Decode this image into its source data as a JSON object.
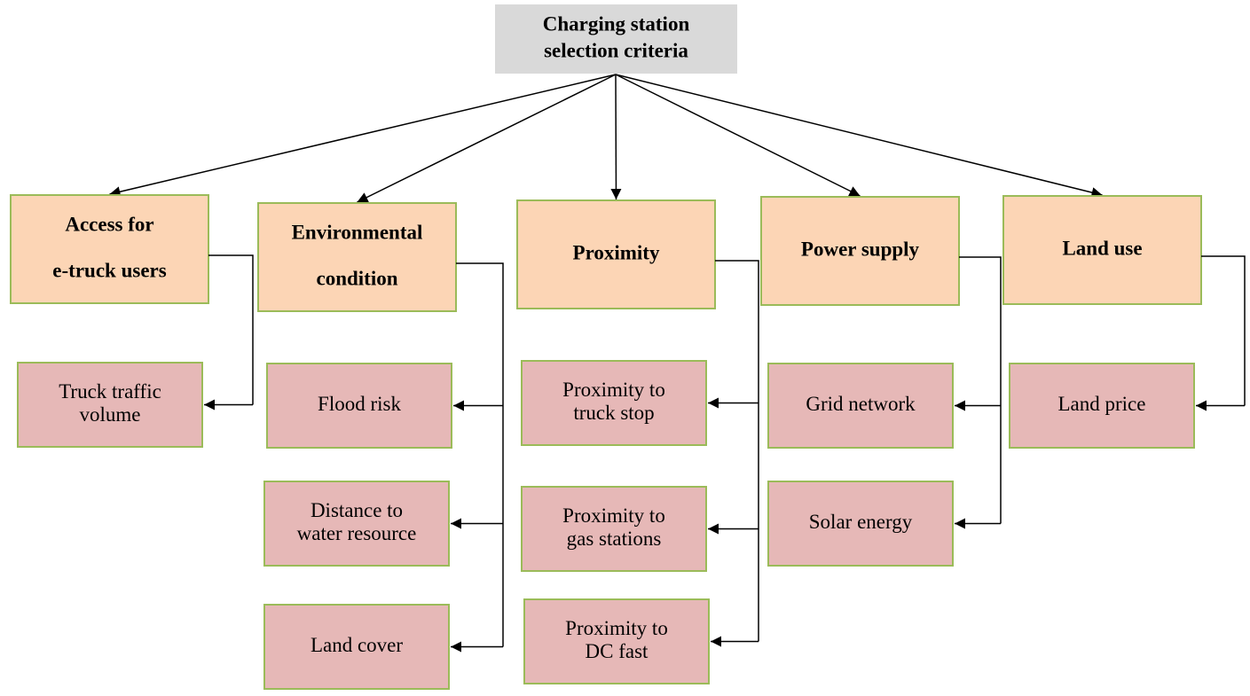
{
  "root": {
    "lines": [
      "Charging station",
      "selection criteria"
    ]
  },
  "criteria": [
    {
      "lines": [
        "Access for",
        "e-truck users"
      ],
      "children": [
        {
          "lines": [
            "Truck traffic",
            "volume"
          ]
        }
      ]
    },
    {
      "lines": [
        "Environmental",
        "condition"
      ],
      "children": [
        {
          "lines": [
            "Flood risk"
          ]
        },
        {
          "lines": [
            "Distance to",
            "water resource"
          ]
        },
        {
          "lines": [
            "Land cover"
          ]
        }
      ]
    },
    {
      "lines": [
        "Proximity"
      ],
      "children": [
        {
          "lines": [
            "Proximity to",
            "truck stop"
          ]
        },
        {
          "lines": [
            "Proximity to",
            "gas stations"
          ]
        },
        {
          "lines": [
            "Proximity to",
            "DC fast"
          ]
        }
      ]
    },
    {
      "lines": [
        "Power supply"
      ],
      "children": [
        {
          "lines": [
            "Grid network"
          ]
        },
        {
          "lines": [
            "Solar energy"
          ]
        }
      ]
    },
    {
      "lines": [
        "Land use"
      ],
      "children": [
        {
          "lines": [
            "Land price"
          ]
        }
      ]
    }
  ]
}
